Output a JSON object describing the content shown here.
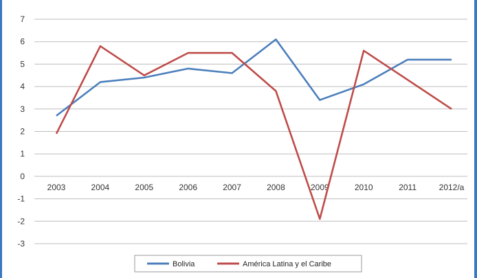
{
  "chart_data": {
    "type": "line",
    "categories": [
      "2003",
      "2004",
      "2005",
      "2006",
      "2007",
      "2008",
      "2009",
      "2010",
      "2011",
      "2012/a"
    ],
    "series": [
      {
        "name": "Bolivia",
        "color": "#4a7ebb",
        "values": [
          2.7,
          4.2,
          4.4,
          4.8,
          4.6,
          6.1,
          3.4,
          4.1,
          5.2,
          5.2
        ]
      },
      {
        "name": "América Latina y el Caribe",
        "color": "#be4b48",
        "values": [
          1.9,
          5.8,
          4.5,
          5.5,
          5.5,
          3.8,
          -1.9,
          5.6,
          4.3,
          3.0
        ]
      }
    ],
    "yticks": [
      "-3",
      "-2",
      "-1",
      "0",
      "1",
      "2",
      "3",
      "4",
      "5",
      "6",
      "7"
    ],
    "ylim": [
      -3,
      7
    ],
    "grid": true,
    "legend_position": "bottom",
    "title": "",
    "xlabel": "",
    "ylabel": ""
  }
}
